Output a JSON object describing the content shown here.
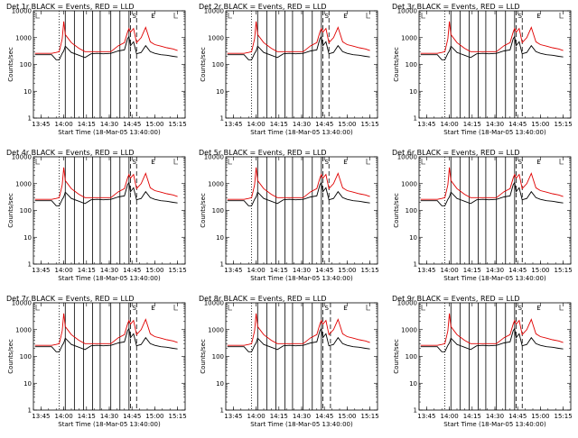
{
  "chart_data": {
    "type": "line",
    "layout": "3x3 grid",
    "title_suffix": "BLACK = Events, RED = LLD",
    "xlabel": "Start Time (18-Mar-05 13:40:00)",
    "ylabel": "Counts/sec",
    "y_scale": "log",
    "ylim": [
      1,
      10000
    ],
    "y_ticks": [
      1,
      10,
      100,
      1000,
      10000
    ],
    "y_tick_labels": [
      "1",
      "10",
      "100",
      "1000",
      "10000"
    ],
    "x_ticks": [
      "13:45",
      "14:00",
      "14:15",
      "14:30",
      "14:45",
      "15:00",
      "15:15"
    ],
    "xlim": [
      "13:40",
      "15:20"
    ],
    "colors": {
      "events": "#000000",
      "lld": "#e00000"
    },
    "markers": {
      "dotted_line": "13:57",
      "dashed_lines": [
        "14:44",
        "14:48"
      ],
      "dashed_line_8r": "14:49",
      "letter_marks": [
        "S",
        "E"
      ]
    },
    "attenuator_time_marks": [
      "14:01",
      "14:07",
      "14:13",
      "14:19",
      "14:24",
      "14:31",
      "14:37",
      "14:43"
    ],
    "panels": [
      {
        "detector": "Det 1r"
      },
      {
        "detector": "Det 2r"
      },
      {
        "detector": "Det 3r"
      },
      {
        "detector": "Det 4r"
      },
      {
        "detector": "Det 5r"
      },
      {
        "detector": "Det 6r"
      },
      {
        "detector": "Det 7r"
      },
      {
        "detector": "Det 8r"
      },
      {
        "detector": "Det 9r"
      }
    ],
    "series": [
      {
        "name": "Events",
        "x": [
          "13:41",
          "13:52",
          "13:55",
          "13:57",
          "13:59",
          "14:00",
          "14:01",
          "14:05",
          "14:10",
          "14:14",
          "14:18",
          "14:22",
          "14:26",
          "14:31",
          "14:36",
          "14:40",
          "14:42",
          "14:43",
          "14:44",
          "14:46",
          "14:48",
          "14:51",
          "14:54",
          "14:57",
          "15:00",
          "15:04",
          "15:08",
          "15:12",
          "15:15"
        ],
        "y": [
          230,
          230,
          150,
          150,
          260,
          320,
          480,
          280,
          220,
          180,
          250,
          260,
          250,
          260,
          320,
          350,
          900,
          1100,
          500,
          700,
          250,
          280,
          500,
          300,
          260,
          230,
          220,
          200,
          190
        ]
      },
      {
        "name": "LLD",
        "x": [
          "13:41",
          "13:52",
          "13:55",
          "13:57",
          "13:59",
          "14:00",
          "14:01",
          "14:05",
          "14:10",
          "14:14",
          "14:18",
          "14:22",
          "14:26",
          "14:31",
          "14:36",
          "14:40",
          "14:42",
          "14:43",
          "14:44",
          "14:46",
          "14:48",
          "14:51",
          "14:54",
          "14:57",
          "15:00",
          "15:04",
          "15:08",
          "15:12",
          "15:15"
        ],
        "y": [
          260,
          260,
          280,
          300,
          900,
          4000,
          1300,
          650,
          400,
          300,
          300,
          300,
          300,
          300,
          500,
          650,
          1600,
          2200,
          1600,
          2200,
          650,
          1000,
          2400,
          700,
          550,
          480,
          420,
          380,
          330
        ]
      }
    ]
  }
}
